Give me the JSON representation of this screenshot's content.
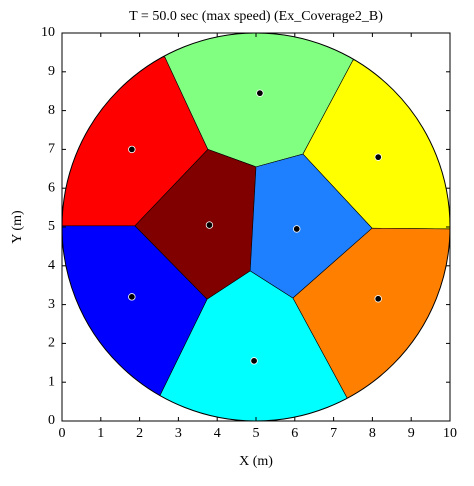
{
  "chart_data": {
    "type": "voronoi",
    "title": "T = 50.0 sec (max speed) (Ex_Coverage2_B)",
    "x_label": "X (m)",
    "y_label": "Y (m)",
    "xlim": [
      0,
      10
    ],
    "ylim": [
      0,
      10
    ],
    "xticks": [
      0,
      1,
      2,
      3,
      4,
      5,
      6,
      7,
      8,
      9,
      10
    ],
    "yticks": [
      0,
      1,
      2,
      3,
      4,
      5,
      6,
      7,
      8,
      9,
      10
    ],
    "boundary": {
      "center": [
        5,
        5
      ],
      "radius": 5
    },
    "regions": [
      {
        "color": "#ff0000",
        "points": [
          [
            0,
            5.03
          ],
          [
            1.88,
            5.03
          ],
          [
            3.76,
            7.0
          ],
          [
            2.65,
            9.38
          ],
          [
            0,
            10
          ]
        ]
      },
      {
        "color": "#80ff80",
        "points": [
          [
            2.65,
            9.38
          ],
          [
            3.76,
            7.0
          ],
          [
            5.0,
            6.55
          ],
          [
            6.21,
            6.88
          ],
          [
            7.5,
            9.3
          ],
          [
            10,
            10
          ],
          [
            0,
            10
          ]
        ]
      },
      {
        "color": "#ffff00",
        "points": [
          [
            6.21,
            6.88
          ],
          [
            7.99,
            4.97
          ],
          [
            10,
            4.95
          ],
          [
            10,
            10
          ],
          [
            7.5,
            9.3
          ]
        ]
      },
      {
        "color": "#ff8000",
        "points": [
          [
            7.99,
            4.97
          ],
          [
            5.95,
            3.17
          ],
          [
            7.35,
            0.59
          ],
          [
            10,
            0
          ],
          [
            10,
            4.95
          ]
        ]
      },
      {
        "color": "#00ffff",
        "points": [
          [
            3.74,
            3.14
          ],
          [
            4.85,
            3.87
          ],
          [
            5.95,
            3.17
          ],
          [
            7.35,
            0.59
          ],
          [
            10,
            0
          ],
          [
            0,
            0
          ],
          [
            2.53,
            0.67
          ]
        ]
      },
      {
        "color": "#0000ff",
        "points": [
          [
            0,
            5.03
          ],
          [
            1.88,
            5.03
          ],
          [
            3.74,
            3.14
          ],
          [
            2.53,
            0.67
          ],
          [
            0,
            0
          ]
        ]
      },
      {
        "color": "#800000",
        "points": [
          [
            1.88,
            5.03
          ],
          [
            3.76,
            7.0
          ],
          [
            5.0,
            6.55
          ],
          [
            4.85,
            3.87
          ],
          [
            3.74,
            3.14
          ]
        ]
      },
      {
        "color": "#1e80ff",
        "points": [
          [
            5.0,
            6.55
          ],
          [
            6.21,
            6.88
          ],
          [
            7.99,
            4.97
          ],
          [
            5.95,
            3.17
          ],
          [
            4.85,
            3.87
          ]
        ]
      }
    ],
    "x": [
      1.8,
      5.1,
      8.15,
      3.8,
      6.05,
      1.8,
      8.15,
      4.95
    ],
    "y": [
      7.0,
      8.45,
      6.8,
      5.05,
      4.95,
      3.2,
      3.15,
      1.55
    ],
    "point_color": "#000000"
  }
}
